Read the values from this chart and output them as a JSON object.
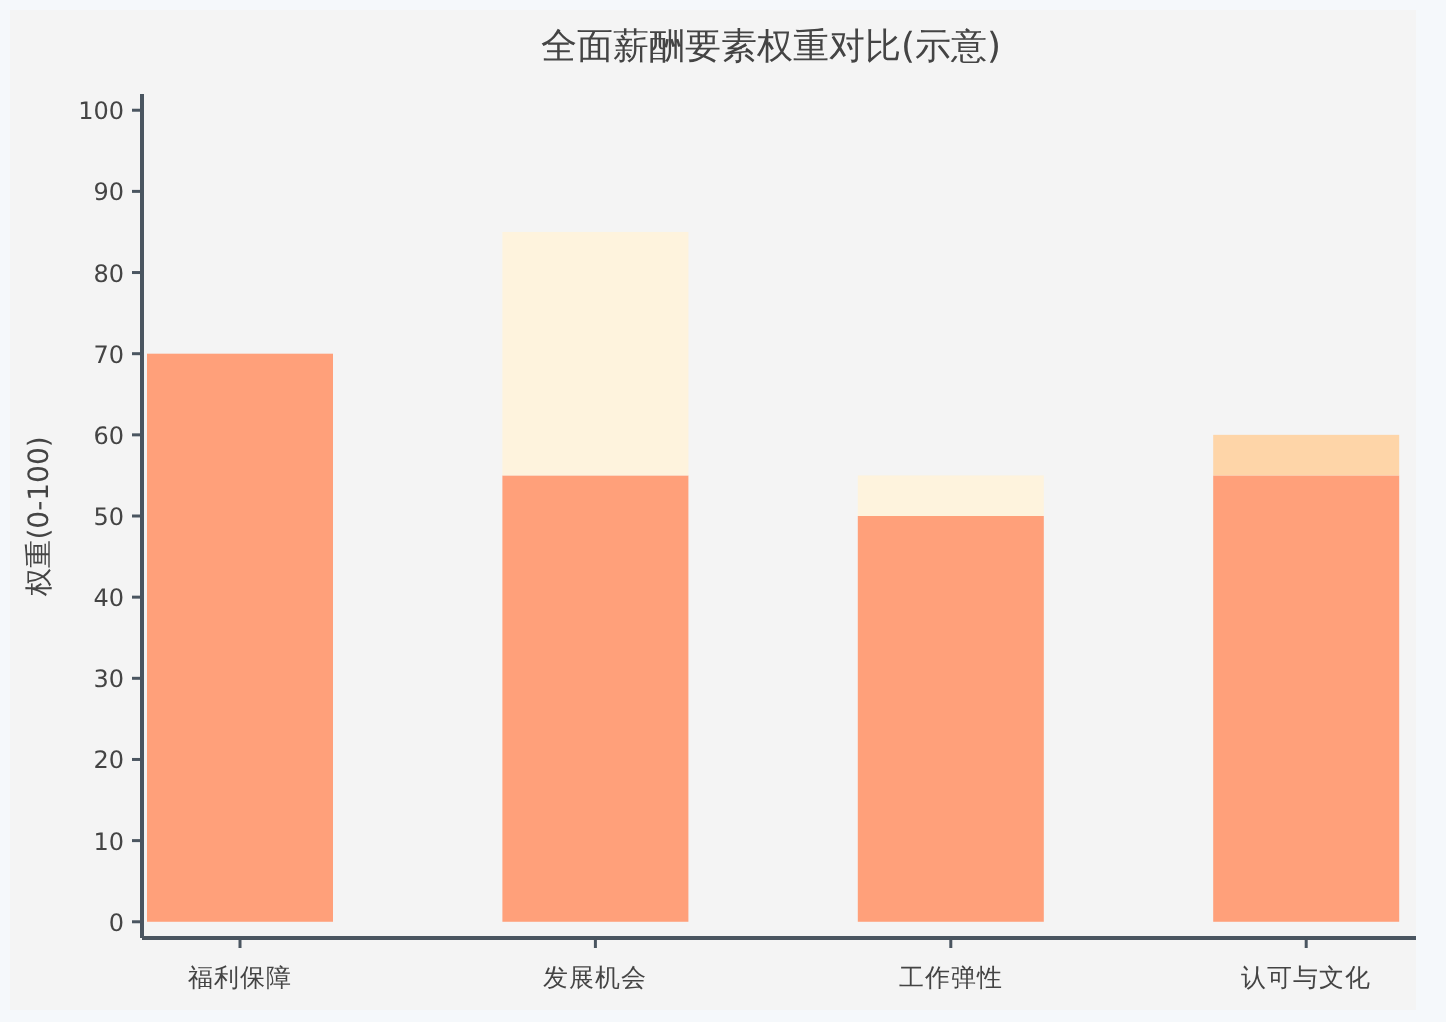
{
  "chart_data": {
    "type": "bar",
    "stacked": true,
    "title": "全面薪酬要素权重对比(示意)",
    "ylabel": "权重(0-100)",
    "categories": [
      "福利保障",
      "发展机会",
      "工作弹性",
      "认可与文化"
    ],
    "series": [
      {
        "color": "#ffa07a",
        "values": [
          70,
          55,
          50,
          55
        ]
      },
      {
        "colors": [
          null,
          "#fef3dd",
          "#fef3dd",
          "#fed5a8"
        ],
        "values": [
          null,
          30,
          5,
          5
        ]
      }
    ],
    "ylim": [
      -2,
      102
    ],
    "yticks": [
      0,
      10,
      20,
      30,
      40,
      50,
      60,
      70,
      80,
      90,
      100
    ],
    "grid": false
  }
}
